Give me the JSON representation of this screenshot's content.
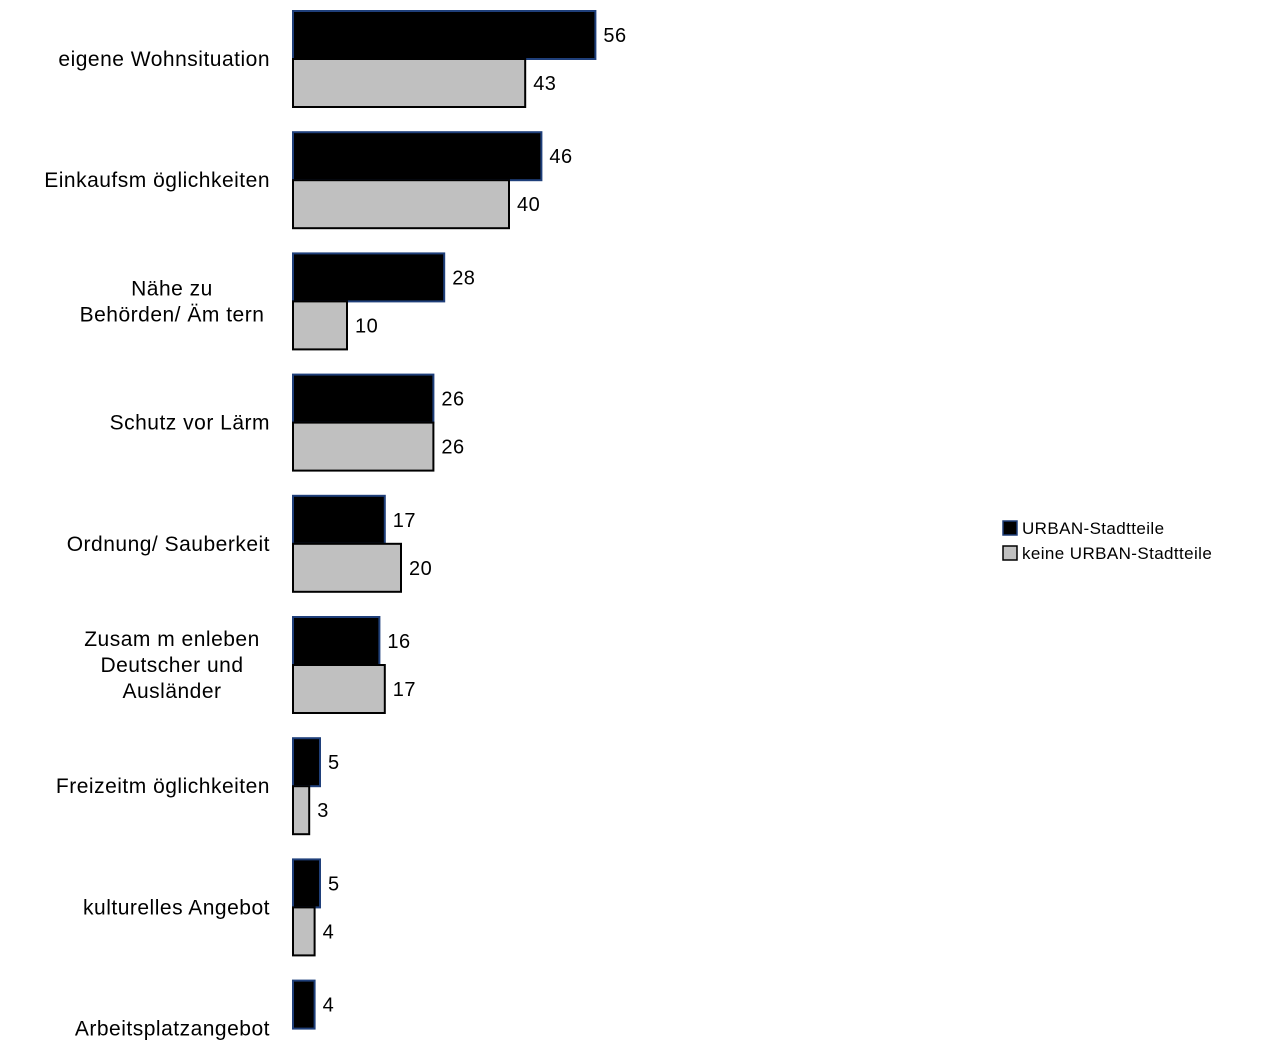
{
  "chart_data": {
    "type": "bar",
    "orientation": "horizontal",
    "categories": [
      [
        "eigene Wohnsituation"
      ],
      [
        "Einkaufsm öglichkeiten"
      ],
      [
        "Nähe zu",
        "Behörden/ Äm tern"
      ],
      [
        "Schutz vor Lärm"
      ],
      [
        "Ordnung/ Sauberkeit"
      ],
      [
        "Zusam m enleben",
        "Deutscher und",
        "Ausländer"
      ],
      [
        "Freizeitm öglichkeiten"
      ],
      [
        "kulturelles Angebot"
      ],
      [
        "Arbeitsplatzangebot"
      ]
    ],
    "series": [
      {
        "name": "URBAN-Stadtteile",
        "color": "#000000",
        "border": "#1f3f7a",
        "values": [
          56,
          46,
          28,
          26,
          17,
          16,
          5,
          5,
          4
        ]
      },
      {
        "name": "keine URBAN-Stadtteile",
        "color": "#c0c0c0",
        "border": "#000000",
        "values": [
          43,
          40,
          10,
          26,
          20,
          17,
          3,
          4,
          0
        ]
      }
    ],
    "grid": false,
    "legend_position": "right",
    "xlabel": "",
    "ylabel": "",
    "title": ""
  }
}
